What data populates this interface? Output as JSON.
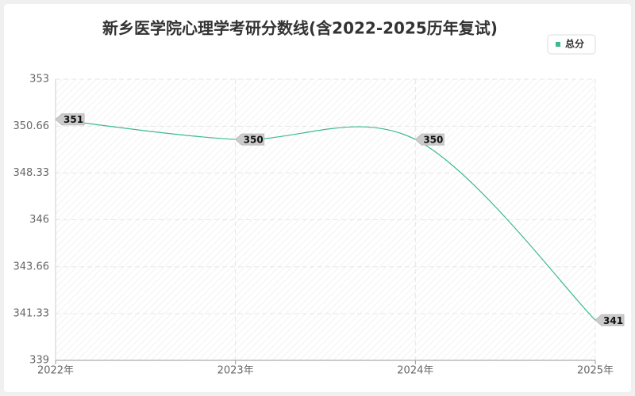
{
  "chart_data": {
    "type": "line",
    "title": "新乡医学院心理学考研分数线(含2022-2025历年复试)",
    "categories": [
      "2022年",
      "2023年",
      "2024年",
      "2025年"
    ],
    "series": [
      {
        "name": "总分",
        "color": "#3dbb8c",
        "values": [
          351,
          350,
          350,
          341
        ]
      }
    ],
    "ylim": [
      339,
      353
    ],
    "yticks": [
      339,
      341.33,
      343.66,
      346,
      348.33,
      350.66,
      353
    ],
    "grid": true,
    "legend": "top-right"
  }
}
